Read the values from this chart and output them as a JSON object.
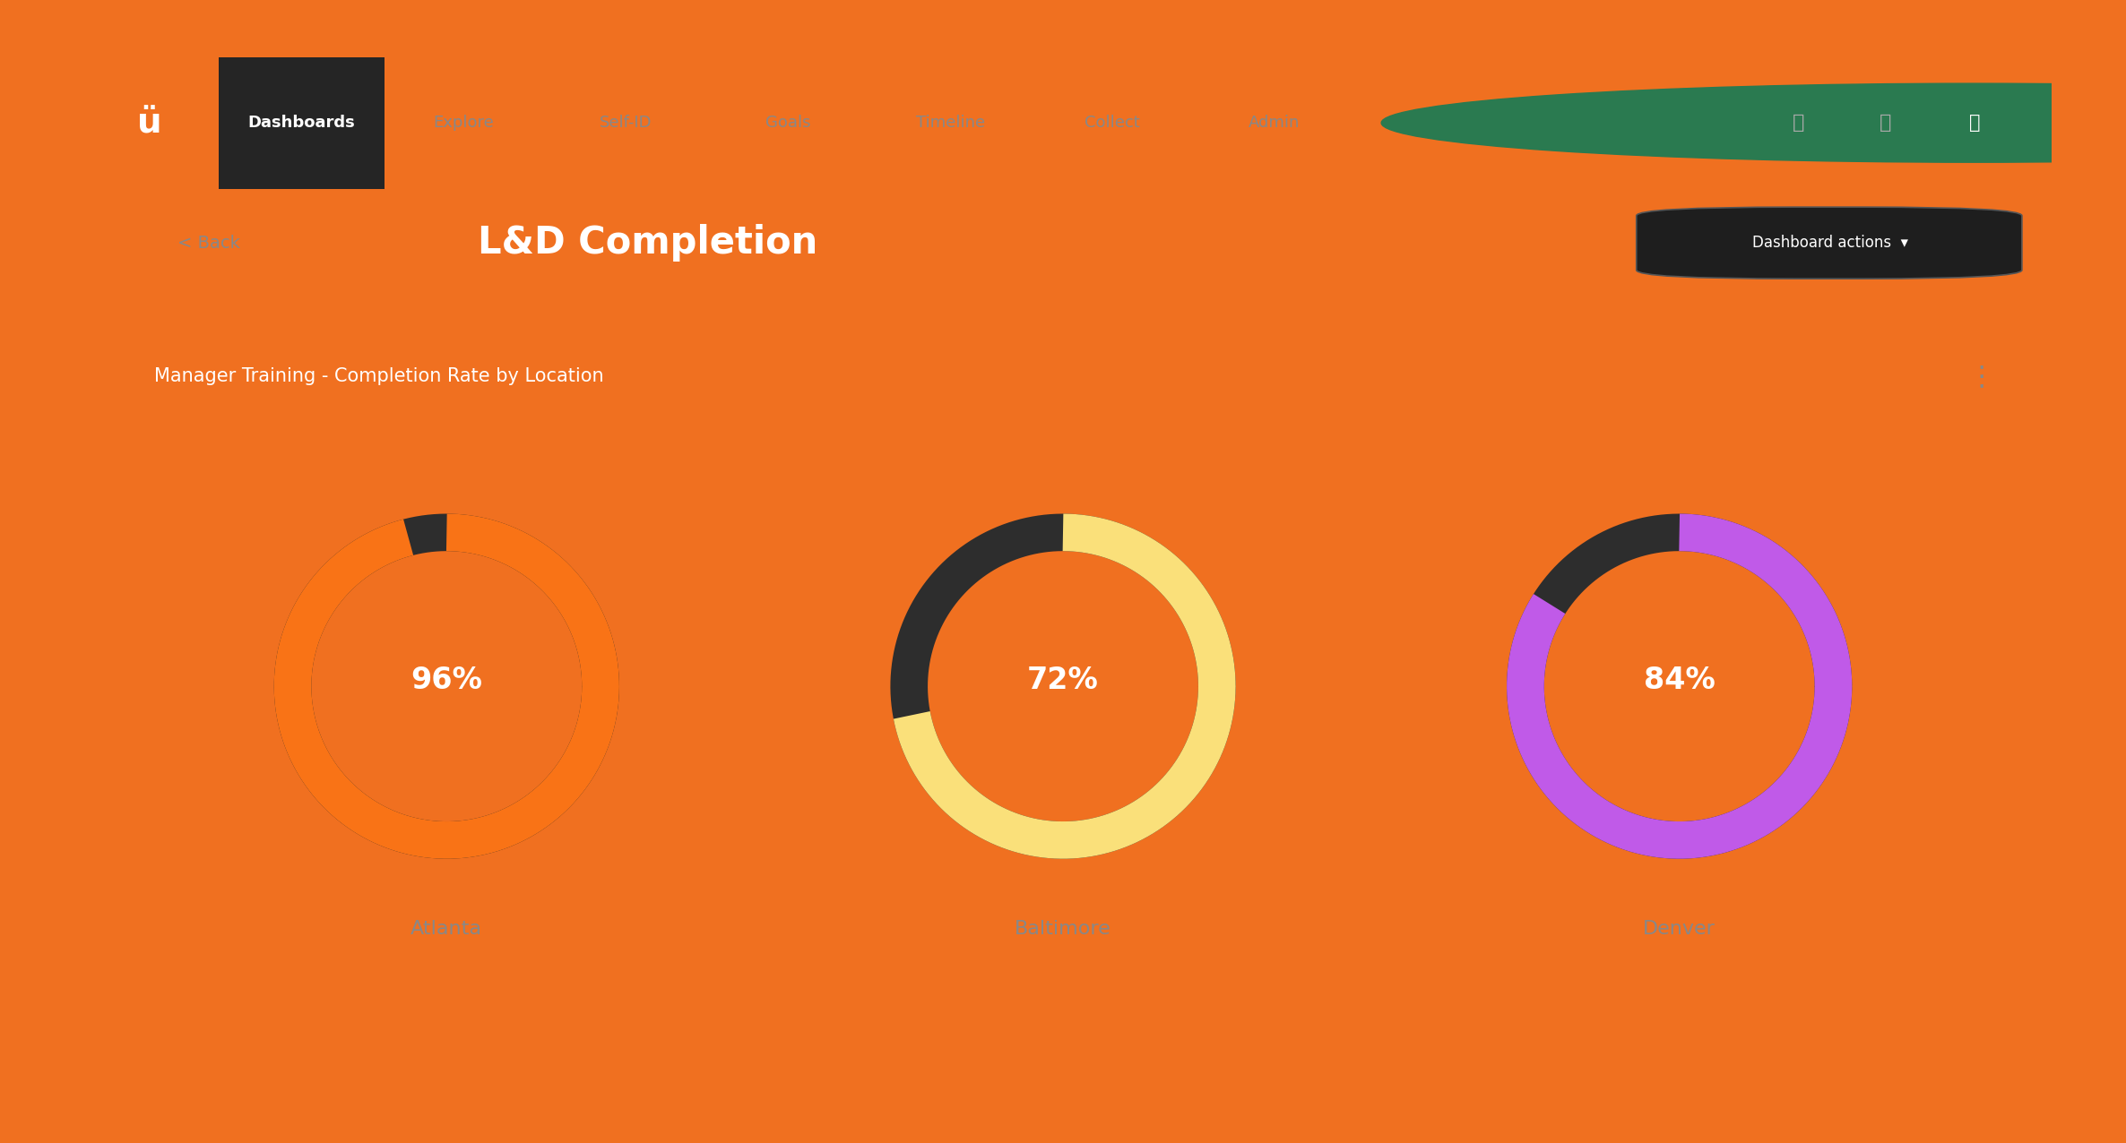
{
  "background_color": "#F07020",
  "dashboard_bg": "#1a1a1a",
  "navbar_bg": "#111111",
  "card_bg": "#1e1e1e",
  "title": "L&D Completion",
  "subtitle": "Manager Training - Completion Rate by Location",
  "nav_items": [
    "Dashboards",
    "Explore",
    "Self-ID",
    "Goals",
    "Timeline",
    "Collect",
    "Admin"
  ],
  "rings": [
    {
      "label": "Atlanta",
      "value": 96,
      "color": "#F97316",
      "track_color": "#2d2d2d"
    },
    {
      "label": "Baltimore",
      "value": 72,
      "color": "#FAE07A",
      "track_color": "#2d2d2d"
    },
    {
      "label": "Denver",
      "value": 84,
      "color": "#C05AE8",
      "track_color": "#2d2d2d"
    }
  ],
  "ring_linewidth": 30,
  "text_color": "#ffffff",
  "muted_color": "#888888",
  "back_text": "< Back",
  "dashboard_actions": "Dashboard actions  ▾"
}
